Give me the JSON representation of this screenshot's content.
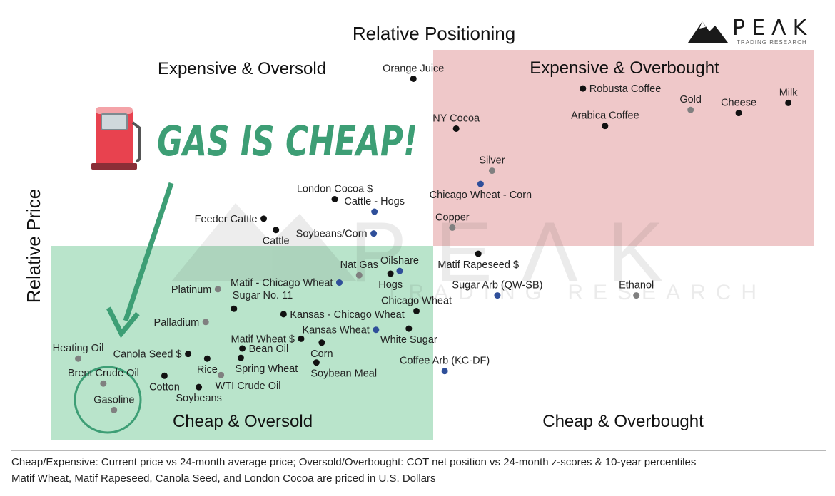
{
  "chart_data": {
    "type": "scatter",
    "title": "Relative Positioning",
    "xlabel": "",
    "ylabel": "Relative Price",
    "xlim": [
      0,
      100
    ],
    "ylim": [
      0,
      100
    ],
    "grid": false,
    "quadrants": {
      "top_left": "Expensive & Oversold",
      "top_right": "Expensive & Overbought",
      "bottom_left": "Cheap & Oversold",
      "bottom_right": "Cheap & Overbought"
    },
    "callout": "GAS IS CHEAP!",
    "series_colors": {
      "black": "#111111",
      "gray": "#808080",
      "blue": "#2f4f9a"
    },
    "points": [
      {
        "label": "Orange Juice",
        "x": 47.5,
        "y": 92.6,
        "color": "black",
        "anchor": "above"
      },
      {
        "label": "Robusta Coffee",
        "x": 69.7,
        "y": 90.1,
        "color": "black",
        "anchor": "right"
      },
      {
        "label": "Gold",
        "x": 83.8,
        "y": 84.6,
        "color": "gray",
        "anchor": "above"
      },
      {
        "label": "Cheese",
        "x": 90.1,
        "y": 83.8,
        "color": "black",
        "anchor": "above"
      },
      {
        "label": "Milk",
        "x": 96.6,
        "y": 86.4,
        "color": "black",
        "anchor": "above"
      },
      {
        "label": "NY Cocoa",
        "x": 53.1,
        "y": 79.8,
        "color": "black",
        "anchor": "above"
      },
      {
        "label": "Arabica Coffee",
        "x": 72.6,
        "y": 80.5,
        "color": "black",
        "anchor": "above"
      },
      {
        "label": "Silver",
        "x": 57.8,
        "y": 69.0,
        "color": "gray",
        "anchor": "above"
      },
      {
        "label": "Chicago Wheat - Corn",
        "x": 56.3,
        "y": 65.6,
        "color": "blue",
        "anchor": "below"
      },
      {
        "label": "London Cocoa $",
        "x": 37.2,
        "y": 61.7,
        "color": "black",
        "anchor": "above"
      },
      {
        "label": "Cattle - Hogs",
        "x": 42.4,
        "y": 58.5,
        "color": "blue",
        "anchor": "above"
      },
      {
        "label": "Feeder Cattle",
        "x": 27.9,
        "y": 56.7,
        "color": "black",
        "anchor": "left"
      },
      {
        "label": "Cattle",
        "x": 29.5,
        "y": 53.8,
        "color": "black",
        "anchor": "below"
      },
      {
        "label": "Soybeans/Corn",
        "x": 42.3,
        "y": 52.9,
        "color": "blue",
        "anchor": "left"
      },
      {
        "label": "Copper",
        "x": 52.6,
        "y": 54.4,
        "color": "gray",
        "anchor": "above"
      },
      {
        "label": "Matif Rapeseed $",
        "x": 56.0,
        "y": 47.7,
        "color": "black",
        "anchor": "below"
      },
      {
        "label": "Nat Gas",
        "x": 40.4,
        "y": 42.2,
        "color": "gray",
        "anchor": "above"
      },
      {
        "label": "Oilshare",
        "x": 45.7,
        "y": 43.3,
        "color": "blue",
        "anchor": "above"
      },
      {
        "label": "Hogs",
        "x": 44.5,
        "y": 42.6,
        "color": "black",
        "anchor": "below"
      },
      {
        "label": "Matif - Chicago Wheat",
        "x": 37.8,
        "y": 40.3,
        "color": "blue",
        "anchor": "left"
      },
      {
        "label": "Sugar Arb (QW-SB)",
        "x": 58.5,
        "y": 37.0,
        "color": "blue",
        "anchor": "above"
      },
      {
        "label": "Ethanol",
        "x": 76.7,
        "y": 37.0,
        "color": "gray",
        "anchor": "above"
      },
      {
        "label": "Platinum",
        "x": 21.9,
        "y": 38.6,
        "color": "gray",
        "anchor": "left"
      },
      {
        "label": "Sugar No. 11",
        "x": 24.0,
        "y": 33.6,
        "color": "black",
        "anchor": "above-right"
      },
      {
        "label": "Chicago Wheat",
        "x": 47.9,
        "y": 33.0,
        "color": "black",
        "anchor": "above"
      },
      {
        "label": "Kansas - Chicago Wheat",
        "x": 30.5,
        "y": 32.2,
        "color": "black",
        "anchor": "right"
      },
      {
        "label": "Palladium",
        "x": 20.3,
        "y": 30.2,
        "color": "gray",
        "anchor": "left"
      },
      {
        "label": "Kansas Wheat",
        "x": 42.6,
        "y": 28.2,
        "color": "blue",
        "anchor": "left"
      },
      {
        "label": "White Sugar",
        "x": 46.9,
        "y": 28.5,
        "color": "black",
        "anchor": "below"
      },
      {
        "label": "Matif Wheat $",
        "x": 32.8,
        "y": 25.9,
        "color": "black",
        "anchor": "left"
      },
      {
        "label": "Heating Oil",
        "x": 3.6,
        "y": 20.8,
        "color": "gray",
        "anchor": "above"
      },
      {
        "label": "Bean Oil",
        "x": 25.1,
        "y": 23.4,
        "color": "black",
        "anchor": "right"
      },
      {
        "label": "Corn",
        "x": 35.5,
        "y": 24.9,
        "color": "black",
        "anchor": "below"
      },
      {
        "label": "Canola Seed $",
        "x": 18.0,
        "y": 22.0,
        "color": "black",
        "anchor": "left"
      },
      {
        "label": "Rice",
        "x": 20.5,
        "y": 20.8,
        "color": "black",
        "anchor": "below"
      },
      {
        "label": "Spring Wheat",
        "x": 24.9,
        "y": 21.0,
        "color": "black",
        "anchor": "below-right"
      },
      {
        "label": "Soybean Meal",
        "x": 34.8,
        "y": 19.8,
        "color": "black",
        "anchor": "below-right"
      },
      {
        "label": "Brent Crude Oil",
        "x": 6.9,
        "y": 14.4,
        "color": "gray",
        "anchor": "above"
      },
      {
        "label": "Cotton",
        "x": 14.9,
        "y": 16.4,
        "color": "black",
        "anchor": "below"
      },
      {
        "label": "WTI Crude Oil",
        "x": 22.3,
        "y": 16.6,
        "color": "gray",
        "anchor": "below-right"
      },
      {
        "label": "Soybeans",
        "x": 19.4,
        "y": 13.5,
        "color": "black",
        "anchor": "below"
      },
      {
        "label": "Gasoline",
        "x": 8.3,
        "y": 7.6,
        "color": "gray",
        "anchor": "above"
      },
      {
        "label": "Coffee Arb (KC-DF)",
        "x": 51.6,
        "y": 17.6,
        "color": "blue",
        "anchor": "above"
      }
    ]
  },
  "logo": {
    "word": "PEΛK",
    "sub": "TRADING RESEARCH"
  },
  "watermark": {
    "word": "PEΛK",
    "sub": "TRADING RESEARCH"
  },
  "notes": [
    "Cheap/Expensive: Current price vs 24-month average price; Oversold/Overbought: COT net position vs 24-month z-scores & 10-year percentiles",
    "Matif Wheat, Matif Rapeseed, Canola Seed, and London Cocoa are priced in U.S. Dollars"
  ]
}
